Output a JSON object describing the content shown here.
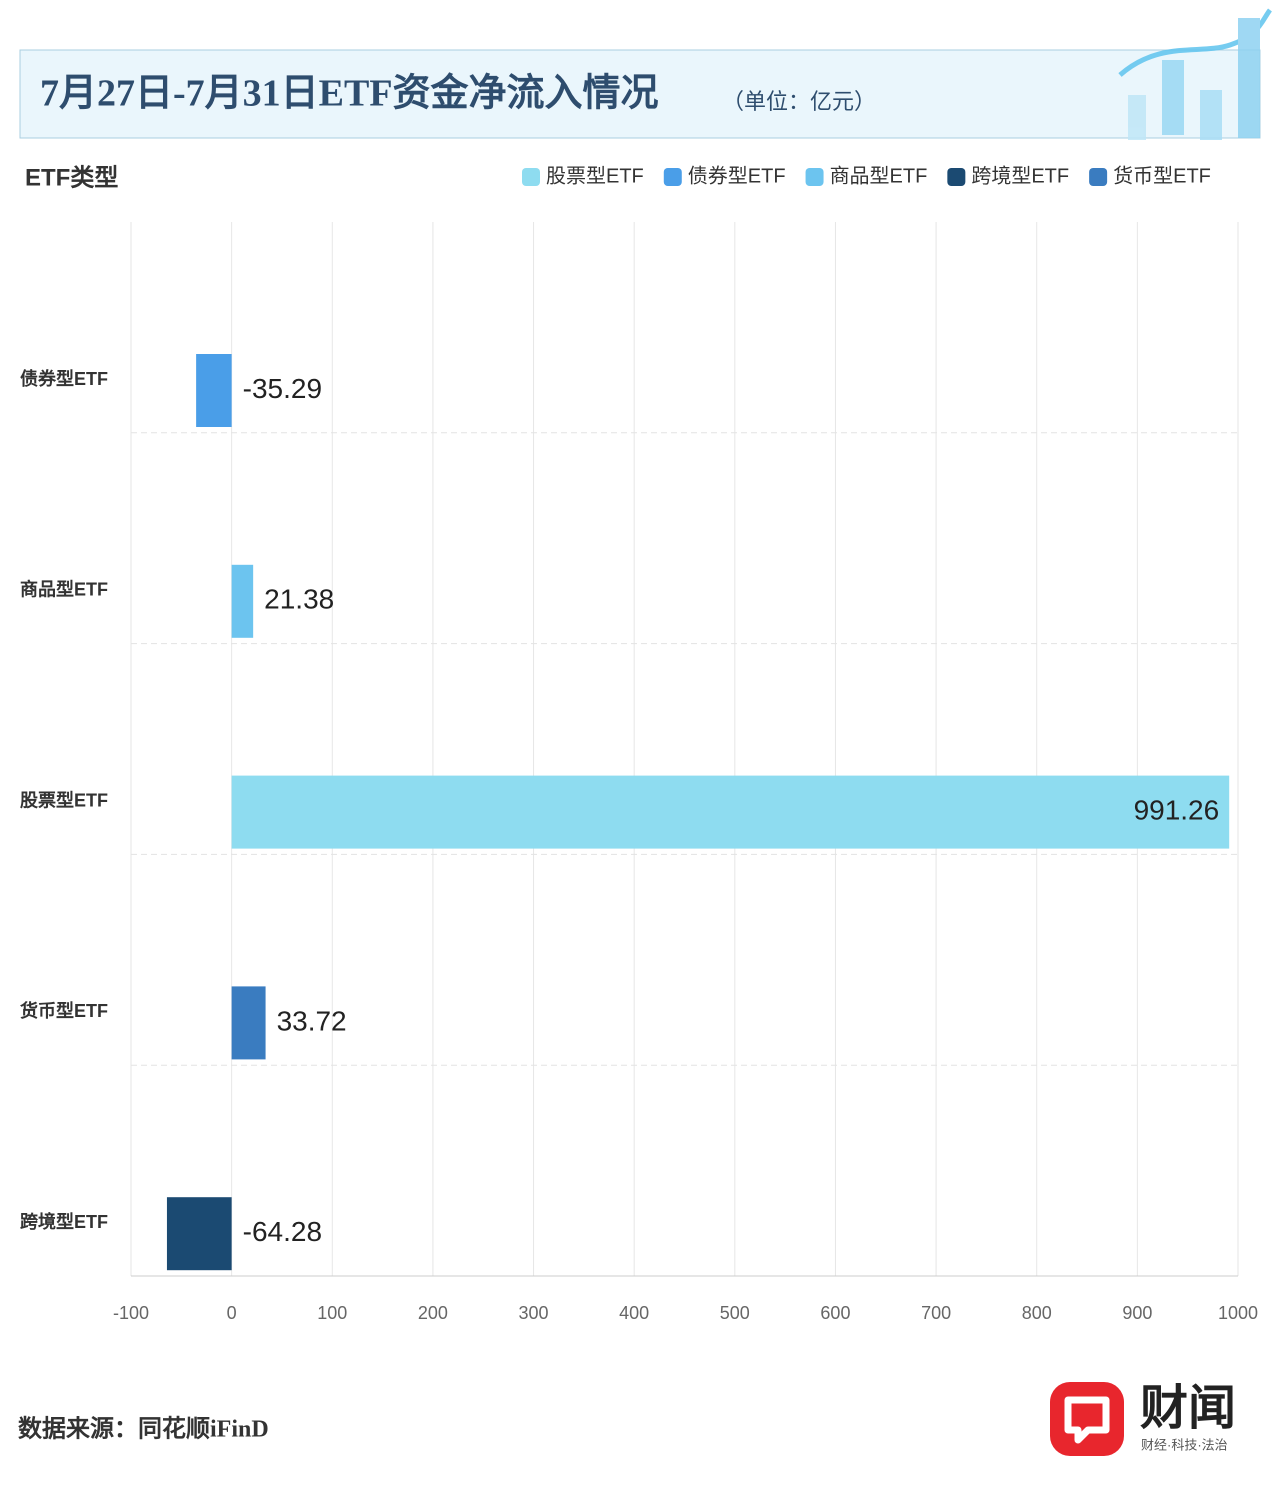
{
  "chart_data": {
    "type": "hbar",
    "title": "7月27日-7月31日ETF资金净流入情况",
    "subtitle": "（单位：亿元）",
    "y_axis_label": "ETF类型",
    "source": "数据来源：同花顺iFinD",
    "brand": "财闻",
    "brand_tagline": "财经·科技·法治",
    "categories": [
      "债券型ETF",
      "商品型ETF",
      "股票型ETF",
      "货币型ETF",
      "跨境型ETF"
    ],
    "series": [
      {
        "name": "股票型ETF",
        "color": "#8edcf0",
        "values": [
          null,
          null,
          991.26,
          null,
          null
        ]
      },
      {
        "name": "债券型ETF",
        "color": "#4a9ee8",
        "values": [
          -35.29,
          null,
          null,
          null,
          null
        ]
      },
      {
        "name": "商品型ETF",
        "color": "#6cc4ef",
        "values": [
          null,
          21.38,
          null,
          null,
          null
        ]
      },
      {
        "name": "跨境型ETF",
        "color": "#1b4a72",
        "values": [
          null,
          null,
          null,
          null,
          -64.28
        ]
      },
      {
        "name": "货币型ETF",
        "color": "#3a7cc0",
        "values": [
          null,
          null,
          null,
          33.72,
          null
        ]
      }
    ],
    "xlim": [
      -100,
      1000
    ],
    "xticks": [
      -100,
      0,
      100,
      200,
      300,
      400,
      500,
      600,
      700,
      800,
      900,
      1000
    ],
    "grid": true
  }
}
